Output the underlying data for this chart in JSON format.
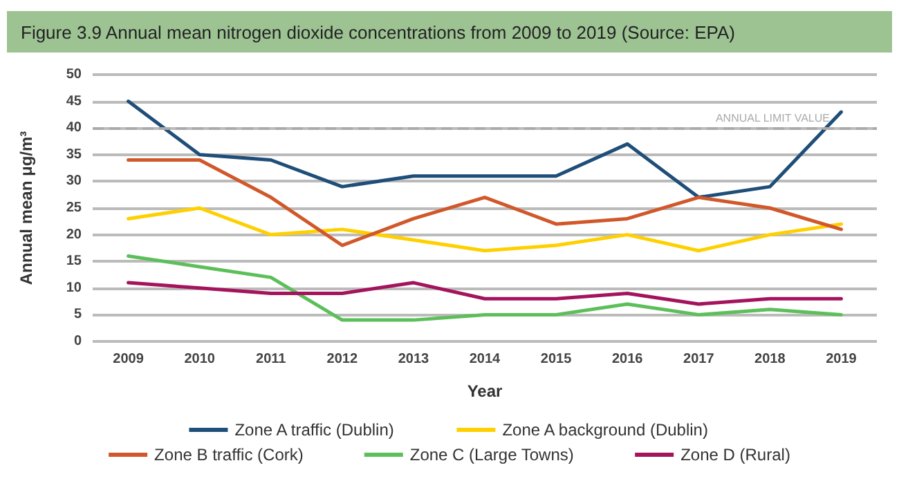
{
  "chart_data": {
    "type": "line",
    "title": "Figure 3.9  Annual mean nitrogen dioxide concentrations from 2009 to 2019 (Source: EPA)",
    "xlabel": "Year",
    "ylabel": "Annual mean μg/m³",
    "categories": [
      "2009",
      "2010",
      "2011",
      "2012",
      "2013",
      "2014",
      "2015",
      "2016",
      "2017",
      "2018",
      "2019"
    ],
    "series": [
      {
        "name": "Zone A traffic (Dublin)",
        "color": "#1f4e79",
        "values": [
          45,
          35,
          34,
          29,
          31,
          31,
          31,
          37,
          27,
          29,
          43
        ]
      },
      {
        "name": "Zone A background (Dublin)",
        "color": "#ffd000",
        "values": [
          23,
          25,
          20,
          21,
          19,
          17,
          18,
          20,
          17,
          20,
          22
        ]
      },
      {
        "name": "Zone B traffic (Cork)",
        "color": "#d0582a",
        "values": [
          34,
          34,
          27,
          18,
          23,
          27,
          22,
          23,
          27,
          25,
          21
        ]
      },
      {
        "name": "Zone C (Large Towns)",
        "color": "#5cbf5a",
        "values": [
          16,
          14,
          12,
          4,
          4,
          5,
          5,
          7,
          5,
          6,
          5
        ]
      },
      {
        "name": "Zone D (Rural)",
        "color": "#a3145c",
        "values": [
          11,
          10,
          9,
          9,
          11,
          8,
          8,
          9,
          7,
          8,
          8
        ]
      }
    ],
    "ylim": [
      0,
      50
    ],
    "yticks": [
      0,
      5,
      10,
      15,
      20,
      25,
      30,
      35,
      40,
      45,
      50
    ],
    "ref_lines": [
      {
        "axis": "y",
        "value": 40,
        "label": "ANNUAL LIMIT VALUE",
        "color": "#aaaaaa",
        "line_style": "dashed"
      }
    ],
    "grid": "y",
    "legend": "bottom",
    "marker": "none",
    "line_style": "solid"
  }
}
